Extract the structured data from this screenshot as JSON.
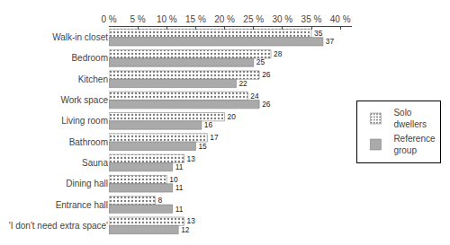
{
  "chart_data": {
    "type": "bar",
    "orientation": "horizontal",
    "categories": [
      "Walk-in closet",
      "Bedroom",
      "Kitchen",
      "Work space",
      "Living room",
      "Bathroom",
      "Sauna",
      "Dining hall",
      "Entrance hall",
      "'I don't need extra space'"
    ],
    "series": [
      {
        "name": "Solo\ndwellers",
        "color": "#e8e8e8",
        "values": [
          35,
          28,
          26,
          24,
          20,
          17,
          13,
          10,
          8,
          13
        ]
      },
      {
        "name": "Reference\ngroup",
        "color": "#aaaaaa",
        "values": [
          37,
          25,
          22,
          26,
          16,
          15,
          11,
          11,
          11,
          12
        ]
      }
    ],
    "xlim": [
      0,
      42
    ],
    "xticks": [
      {
        "value": 0,
        "label": "0 %"
      },
      {
        "value": 5,
        "label": "5 %"
      },
      {
        "value": 10,
        "label": "10 %"
      },
      {
        "value": 15,
        "label": "15 %"
      },
      {
        "value": 20,
        "label": "20 %"
      },
      {
        "value": 25,
        "label": "25 %"
      },
      {
        "value": 30,
        "label": "30 %"
      },
      {
        "value": 35,
        "label": "35 %"
      },
      {
        "value": 40,
        "label": "40 %"
      }
    ],
    "grid": false,
    "legend": "right",
    "data_labels": true
  }
}
